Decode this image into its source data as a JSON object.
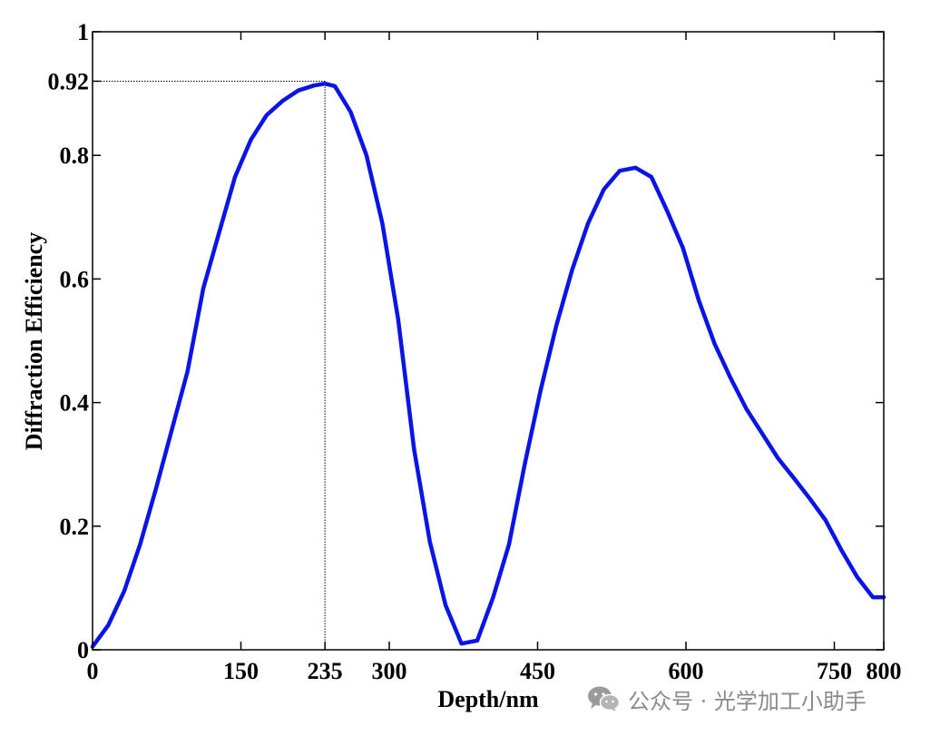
{
  "chart_data": {
    "type": "line",
    "title": "",
    "xlabel": "Depth/nm",
    "ylabel": "Diffraction Efficiency",
    "xlim": [
      0,
      800
    ],
    "ylim": [
      0,
      1
    ],
    "x_ticks": [
      0,
      150,
      235,
      300,
      450,
      600,
      750,
      800
    ],
    "x_tick_labels": [
      "0",
      "150",
      "235",
      "300",
      "450",
      "600",
      "750",
      "800"
    ],
    "y_ticks": [
      0,
      0.2,
      0.4,
      0.6,
      0.8,
      0.92,
      1
    ],
    "y_tick_labels": [
      "0",
      "0.2",
      "0.4",
      "0.6",
      "0.8",
      "0.92",
      "1"
    ],
    "grid": false,
    "series": [
      {
        "color": "#0a14e6",
        "x": [
          0,
          16,
          32,
          48,
          64,
          80,
          96,
          112,
          128,
          144,
          160,
          176,
          192,
          208,
          224,
          235,
          245,
          261,
          277,
          293,
          309,
          325,
          341,
          357,
          373,
          389,
          405,
          421,
          437,
          453,
          469,
          485,
          501,
          517,
          533,
          549,
          565,
          581,
          597,
          613,
          629,
          645,
          661,
          677,
          693,
          709,
          725,
          741,
          757,
          773,
          789,
          800
        ],
        "y": [
          0.005,
          0.04,
          0.095,
          0.17,
          0.26,
          0.355,
          0.45,
          0.585,
          0.675,
          0.765,
          0.825,
          0.865,
          0.888,
          0.905,
          0.913,
          0.916,
          0.912,
          0.87,
          0.8,
          0.69,
          0.535,
          0.325,
          0.175,
          0.072,
          0.01,
          0.015,
          0.085,
          0.17,
          0.3,
          0.42,
          0.525,
          0.615,
          0.69,
          0.745,
          0.775,
          0.78,
          0.765,
          0.71,
          0.65,
          0.565,
          0.495,
          0.44,
          0.39,
          0.35,
          0.31,
          0.278,
          0.245,
          0.21,
          0.162,
          0.118,
          0.085,
          0.085
        ]
      }
    ],
    "annotations": [
      {
        "type": "guide-lines",
        "x": 235,
        "y": 0.92
      }
    ]
  },
  "watermark": {
    "icon": "wechat-icon",
    "text": "公众号 · 光学加工小助手",
    "color": "#8a8a8a"
  }
}
